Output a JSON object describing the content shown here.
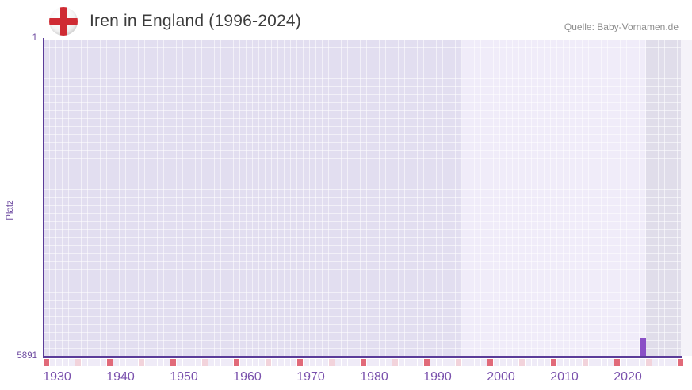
{
  "header": {
    "title": "Iren in England (1996-2024)",
    "source": "Quelle: Baby-Vornamen.de",
    "flag_icon": "england-flag"
  },
  "y_axis": {
    "axis_title": "Platz",
    "top_label": "1",
    "bottom_label": "5891"
  },
  "colors": {
    "title_text": "#3c3c3c",
    "source_text": "#8f8f8f",
    "axis_line": "#5b3c99",
    "tick_text": "#7a51ad",
    "small_text": "#6d4aa0",
    "flag_cross": "#cf2b33",
    "bar": "#8a50c6",
    "band_pre_data": "#e2def0",
    "band_data_range": "#f0ecf9",
    "band_future": "#e0ddea",
    "ruler_base": "#efebf7",
    "decade_marker": "#e16a79",
    "half_decade_marker": "#f2d3db"
  },
  "chart_data": {
    "type": "bar",
    "title": "Iren in England (1996-2024)",
    "xlabel": "",
    "ylabel": "Platz",
    "grid": true,
    "legend": false,
    "y_axis": {
      "min": 1,
      "max": 5891,
      "inverted": true,
      "top_tick": "1",
      "bottom_tick": "5891"
    },
    "x_axis": {
      "start_year": 1930,
      "end_year": 2030,
      "tick_years": [
        1930,
        1940,
        1950,
        1960,
        1970,
        1980,
        1990,
        2000,
        2010,
        2020
      ],
      "decade_marker_years": "every 10 years 1930-2030",
      "half_decade_marker_years": "every 5 years 1935-2025"
    },
    "bands": [
      {
        "name": "pre-data",
        "from": 1930,
        "to": 1996,
        "color": "#e2def0"
      },
      {
        "name": "data-range",
        "from": 1996,
        "to": 2025,
        "color": "#f0ecf9"
      },
      {
        "name": "future",
        "from": 2025,
        "to": 2030.5,
        "color": "#e0ddea"
      }
    ],
    "series": [
      {
        "name": "Iren",
        "points": [
          {
            "year": 2024,
            "platz": 5891
          }
        ]
      }
    ]
  }
}
